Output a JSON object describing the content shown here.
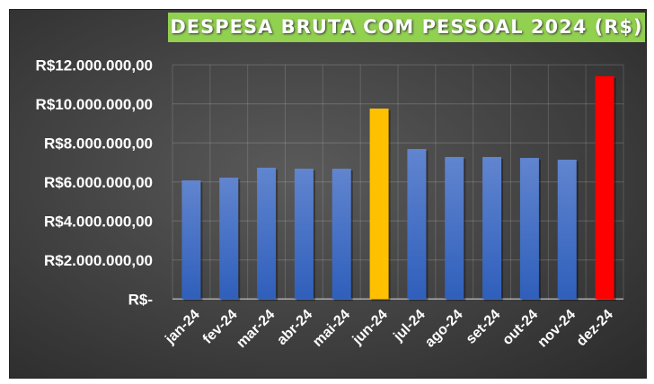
{
  "chart_data": {
    "type": "bar",
    "title": "DESPESA BRUTA COM PESSOAL 2024 (R$)",
    "categories": [
      "jan-24",
      "fev-24",
      "mar-24",
      "abr-24",
      "mai-24",
      "jun-24",
      "jul-24",
      "ago-24",
      "set-24",
      "out-24",
      "nov-24",
      "dez-24"
    ],
    "values": [
      6080000,
      6220000,
      6730000,
      6680000,
      6680000,
      9760000,
      7690000,
      7280000,
      7280000,
      7230000,
      7140000,
      11420000
    ],
    "colors": [
      "#4472c4",
      "#4472c4",
      "#4472c4",
      "#4472c4",
      "#4472c4",
      "#ffc000",
      "#4472c4",
      "#4472c4",
      "#4472c4",
      "#4472c4",
      "#4472c4",
      "#ff0000"
    ],
    "ylim": [
      0,
      12000000
    ],
    "yticks": [
      0,
      2000000,
      4000000,
      6000000,
      8000000,
      10000000,
      12000000
    ],
    "ytick_labels": [
      "R$-",
      "R$2.000.000,00",
      "R$4.000.000,00",
      "R$6.000.000,00",
      "R$8.000.000,00",
      "R$10.000.000,00",
      "R$12.000.000,00"
    ],
    "grid": true,
    "xlabel": "",
    "ylabel": ""
  }
}
